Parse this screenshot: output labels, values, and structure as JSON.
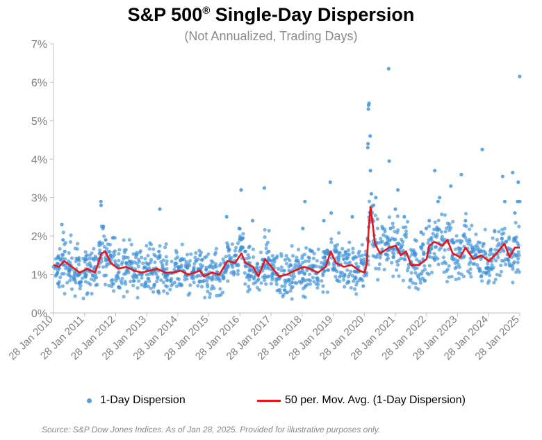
{
  "chart_data": {
    "type": "scatter",
    "title": "S&P 500",
    "title_mark": "®",
    "title_suffix": " Single-Day Dispersion",
    "subtitle": "(Not Annualized, Trading Days)",
    "x_ticks": [
      "28 Jan 2010",
      "28 Jan 2011",
      "28 Jan 2012",
      "28 Jan 2013",
      "28 Jan 2014",
      "28 Jan 2015",
      "28 Jan 2016",
      "28 Jan 2017",
      "28 Jan 2018",
      "28 Jan 2019",
      "28 Jan 2020",
      "28 Jan 2021",
      "28 Jan 2022",
      "28 Jan 2023",
      "28 Jan 2024",
      "28 Jan 2025"
    ],
    "x_range": [
      "2010-01-28",
      "2025-01-28"
    ],
    "y_ticks": [
      "0%",
      "1%",
      "2%",
      "3%",
      "4%",
      "5%",
      "6%",
      "7%"
    ],
    "ylim": [
      0,
      7
    ],
    "grid": false,
    "legend_position": "bottom",
    "colors": {
      "dispersion": "#3a8fd6",
      "moving_average": "#e8141a"
    },
    "series": [
      {
        "name": "1-Day Dispersion",
        "kind": "scatter",
        "note_values": "approximate percent values read from the chart; shown points are representative samples",
        "points": [
          [
            "2010-03-01",
            1.2
          ],
          [
            "2010-04-15",
            1.4
          ],
          [
            "2010-05-06",
            2.3
          ],
          [
            "2010-05-20",
            1.9
          ],
          [
            "2010-06-10",
            1.6
          ],
          [
            "2010-08-02",
            1.1
          ],
          [
            "2010-10-01",
            0.9
          ],
          [
            "2010-12-01",
            0.8
          ],
          [
            "2011-02-15",
            1.0
          ],
          [
            "2011-04-01",
            1.1
          ],
          [
            "2011-06-01",
            1.2
          ],
          [
            "2011-08-08",
            2.9
          ],
          [
            "2011-08-10",
            2.8
          ],
          [
            "2011-09-01",
            2.2
          ],
          [
            "2011-10-03",
            1.9
          ],
          [
            "2011-12-01",
            1.5
          ],
          [
            "2012-03-01",
            1.2
          ],
          [
            "2012-06-01",
            1.3
          ],
          [
            "2012-09-01",
            1.1
          ],
          [
            "2012-12-01",
            1.0
          ],
          [
            "2013-02-01",
            1.1
          ],
          [
            "2013-06-20",
            1.6
          ],
          [
            "2013-07-01",
            2.7
          ],
          [
            "2013-10-01",
            1.0
          ],
          [
            "2014-02-01",
            1.2
          ],
          [
            "2014-05-01",
            1.0
          ],
          [
            "2014-08-01",
            1.1
          ],
          [
            "2014-10-15",
            1.5
          ],
          [
            "2015-02-01",
            1.2
          ],
          [
            "2015-05-01",
            1.0
          ],
          [
            "2015-08-24",
            2.5
          ],
          [
            "2015-10-01",
            1.4
          ],
          [
            "2015-12-01",
            1.3
          ],
          [
            "2016-01-20",
            2.2
          ],
          [
            "2016-02-11",
            3.2
          ],
          [
            "2016-04-01",
            1.6
          ],
          [
            "2016-06-24",
            2.4
          ],
          [
            "2016-09-01",
            1.1
          ],
          [
            "2016-11-09",
            3.25
          ],
          [
            "2017-01-01",
            1.6
          ],
          [
            "2017-04-01",
            1.0
          ],
          [
            "2017-07-01",
            1.1
          ],
          [
            "2017-10-01",
            0.8
          ],
          [
            "2018-02-05",
            2.2
          ],
          [
            "2018-03-01",
            2.9
          ],
          [
            "2018-06-01",
            1.1
          ],
          [
            "2018-10-10",
            2.4
          ],
          [
            "2018-12-24",
            3.4
          ],
          [
            "2019-01-04",
            2.6
          ],
          [
            "2019-03-01",
            1.6
          ],
          [
            "2019-06-01",
            1.4
          ],
          [
            "2019-09-09",
            2.5
          ],
          [
            "2019-12-01",
            1.1
          ],
          [
            "2020-01-15",
            0.7
          ],
          [
            "2020-02-24",
            1.5
          ],
          [
            "2020-03-09",
            4.3
          ],
          [
            "2020-03-12",
            4.4
          ],
          [
            "2020-03-16",
            5.3
          ],
          [
            "2020-03-18",
            5.4
          ],
          [
            "2020-03-24",
            5.45
          ],
          [
            "2020-04-06",
            4.6
          ],
          [
            "2020-04-09",
            3.7
          ],
          [
            "2020-04-20",
            3.1
          ],
          [
            "2020-05-15",
            2.8
          ],
          [
            "2020-06-11",
            3.0
          ],
          [
            "2020-09-01",
            2.2
          ],
          [
            "2020-11-09",
            6.35
          ],
          [
            "2020-11-16",
            3.95
          ],
          [
            "2020-12-01",
            2.2
          ],
          [
            "2021-01-27",
            2.7
          ],
          [
            "2021-02-26",
            3.2
          ],
          [
            "2021-05-12",
            2.5
          ],
          [
            "2021-08-01",
            1.3
          ],
          [
            "2021-11-26",
            2.1
          ],
          [
            "2022-01-25",
            2.2
          ],
          [
            "2022-03-01",
            2.4
          ],
          [
            "2022-05-05",
            3.7
          ],
          [
            "2022-06-13",
            2.9
          ],
          [
            "2022-07-01",
            3.0
          ],
          [
            "2022-11-10",
            3.3
          ],
          [
            "2022-12-01",
            1.5
          ],
          [
            "2023-03-13",
            3.6
          ],
          [
            "2023-05-01",
            2.4
          ],
          [
            "2023-08-01",
            1.6
          ],
          [
            "2023-11-14",
            4.25
          ],
          [
            "2023-12-01",
            1.8
          ],
          [
            "2024-04-01",
            1.5
          ],
          [
            "2024-07-11",
            3.55
          ],
          [
            "2024-08-05",
            2.9
          ],
          [
            "2024-11-06",
            3.65
          ],
          [
            "2024-12-01",
            2.6
          ],
          [
            "2025-01-02",
            2.9
          ],
          [
            "2025-01-10",
            3.4
          ],
          [
            "2025-01-27",
            6.15
          ],
          [
            "2025-01-28",
            2.9
          ]
        ]
      },
      {
        "name": "50 per. Mov. Avg. (1-Day Dispersion)",
        "kind": "line",
        "points": [
          [
            "2010-01-28",
            1.25
          ],
          [
            "2010-04-01",
            1.2
          ],
          [
            "2010-06-01",
            1.35
          ],
          [
            "2010-09-01",
            1.2
          ],
          [
            "2010-12-01",
            1.05
          ],
          [
            "2011-03-01",
            1.15
          ],
          [
            "2011-06-01",
            1.05
          ],
          [
            "2011-08-15",
            1.55
          ],
          [
            "2011-10-01",
            1.6
          ],
          [
            "2011-12-01",
            1.3
          ],
          [
            "2012-03-01",
            1.15
          ],
          [
            "2012-06-01",
            1.2
          ],
          [
            "2012-09-01",
            1.1
          ],
          [
            "2012-12-01",
            1.05
          ],
          [
            "2013-03-01",
            1.1
          ],
          [
            "2013-06-01",
            1.15
          ],
          [
            "2013-09-01",
            1.05
          ],
          [
            "2013-12-01",
            1.05
          ],
          [
            "2014-03-01",
            1.1
          ],
          [
            "2014-06-01",
            1.0
          ],
          [
            "2014-10-15",
            1.1
          ],
          [
            "2014-12-01",
            0.95
          ],
          [
            "2015-03-01",
            1.05
          ],
          [
            "2015-06-01",
            1.0
          ],
          [
            "2015-09-01",
            1.35
          ],
          [
            "2015-12-01",
            1.3
          ],
          [
            "2016-02-15",
            1.55
          ],
          [
            "2016-04-01",
            1.3
          ],
          [
            "2016-07-01",
            1.2
          ],
          [
            "2016-09-01",
            0.95
          ],
          [
            "2016-11-20",
            1.4
          ],
          [
            "2017-02-01",
            1.2
          ],
          [
            "2017-05-01",
            0.95
          ],
          [
            "2017-08-01",
            1.0
          ],
          [
            "2017-11-01",
            1.1
          ],
          [
            "2018-02-20",
            1.2
          ],
          [
            "2018-05-01",
            1.15
          ],
          [
            "2018-08-01",
            1.05
          ],
          [
            "2018-11-01",
            1.2
          ],
          [
            "2018-12-31",
            1.6
          ],
          [
            "2019-03-01",
            1.3
          ],
          [
            "2019-06-01",
            1.2
          ],
          [
            "2019-09-01",
            1.25
          ],
          [
            "2019-12-01",
            1.1
          ],
          [
            "2020-02-01",
            1.05
          ],
          [
            "2020-02-28",
            1.3
          ],
          [
            "2020-03-20",
            2.2
          ],
          [
            "2020-04-10",
            2.75
          ],
          [
            "2020-05-01",
            2.4
          ],
          [
            "2020-06-01",
            1.8
          ],
          [
            "2020-08-01",
            1.55
          ],
          [
            "2020-11-15",
            1.7
          ],
          [
            "2021-02-01",
            1.75
          ],
          [
            "2021-04-01",
            1.5
          ],
          [
            "2021-06-01",
            1.6
          ],
          [
            "2021-08-01",
            1.25
          ],
          [
            "2021-11-01",
            1.25
          ],
          [
            "2022-01-28",
            1.4
          ],
          [
            "2022-03-01",
            1.75
          ],
          [
            "2022-05-01",
            1.85
          ],
          [
            "2022-08-01",
            1.75
          ],
          [
            "2022-10-01",
            1.9
          ],
          [
            "2022-12-01",
            1.55
          ],
          [
            "2023-03-01",
            1.45
          ],
          [
            "2023-05-01",
            1.7
          ],
          [
            "2023-08-01",
            1.4
          ],
          [
            "2023-11-01",
            1.5
          ],
          [
            "2024-02-01",
            1.35
          ],
          [
            "2024-05-01",
            1.55
          ],
          [
            "2024-08-01",
            1.8
          ],
          [
            "2024-10-01",
            1.45
          ],
          [
            "2024-12-01",
            1.7
          ],
          [
            "2025-01-28",
            1.7
          ]
        ]
      }
    ],
    "legend": [
      "1-Day Dispersion",
      "50 per. Mov. Avg. (1-Day Dispersion)"
    ],
    "source": "Source: S&P Dow Jones Indices.  As of Jan 28, 2025.  Provided for illustrative purposes only."
  }
}
